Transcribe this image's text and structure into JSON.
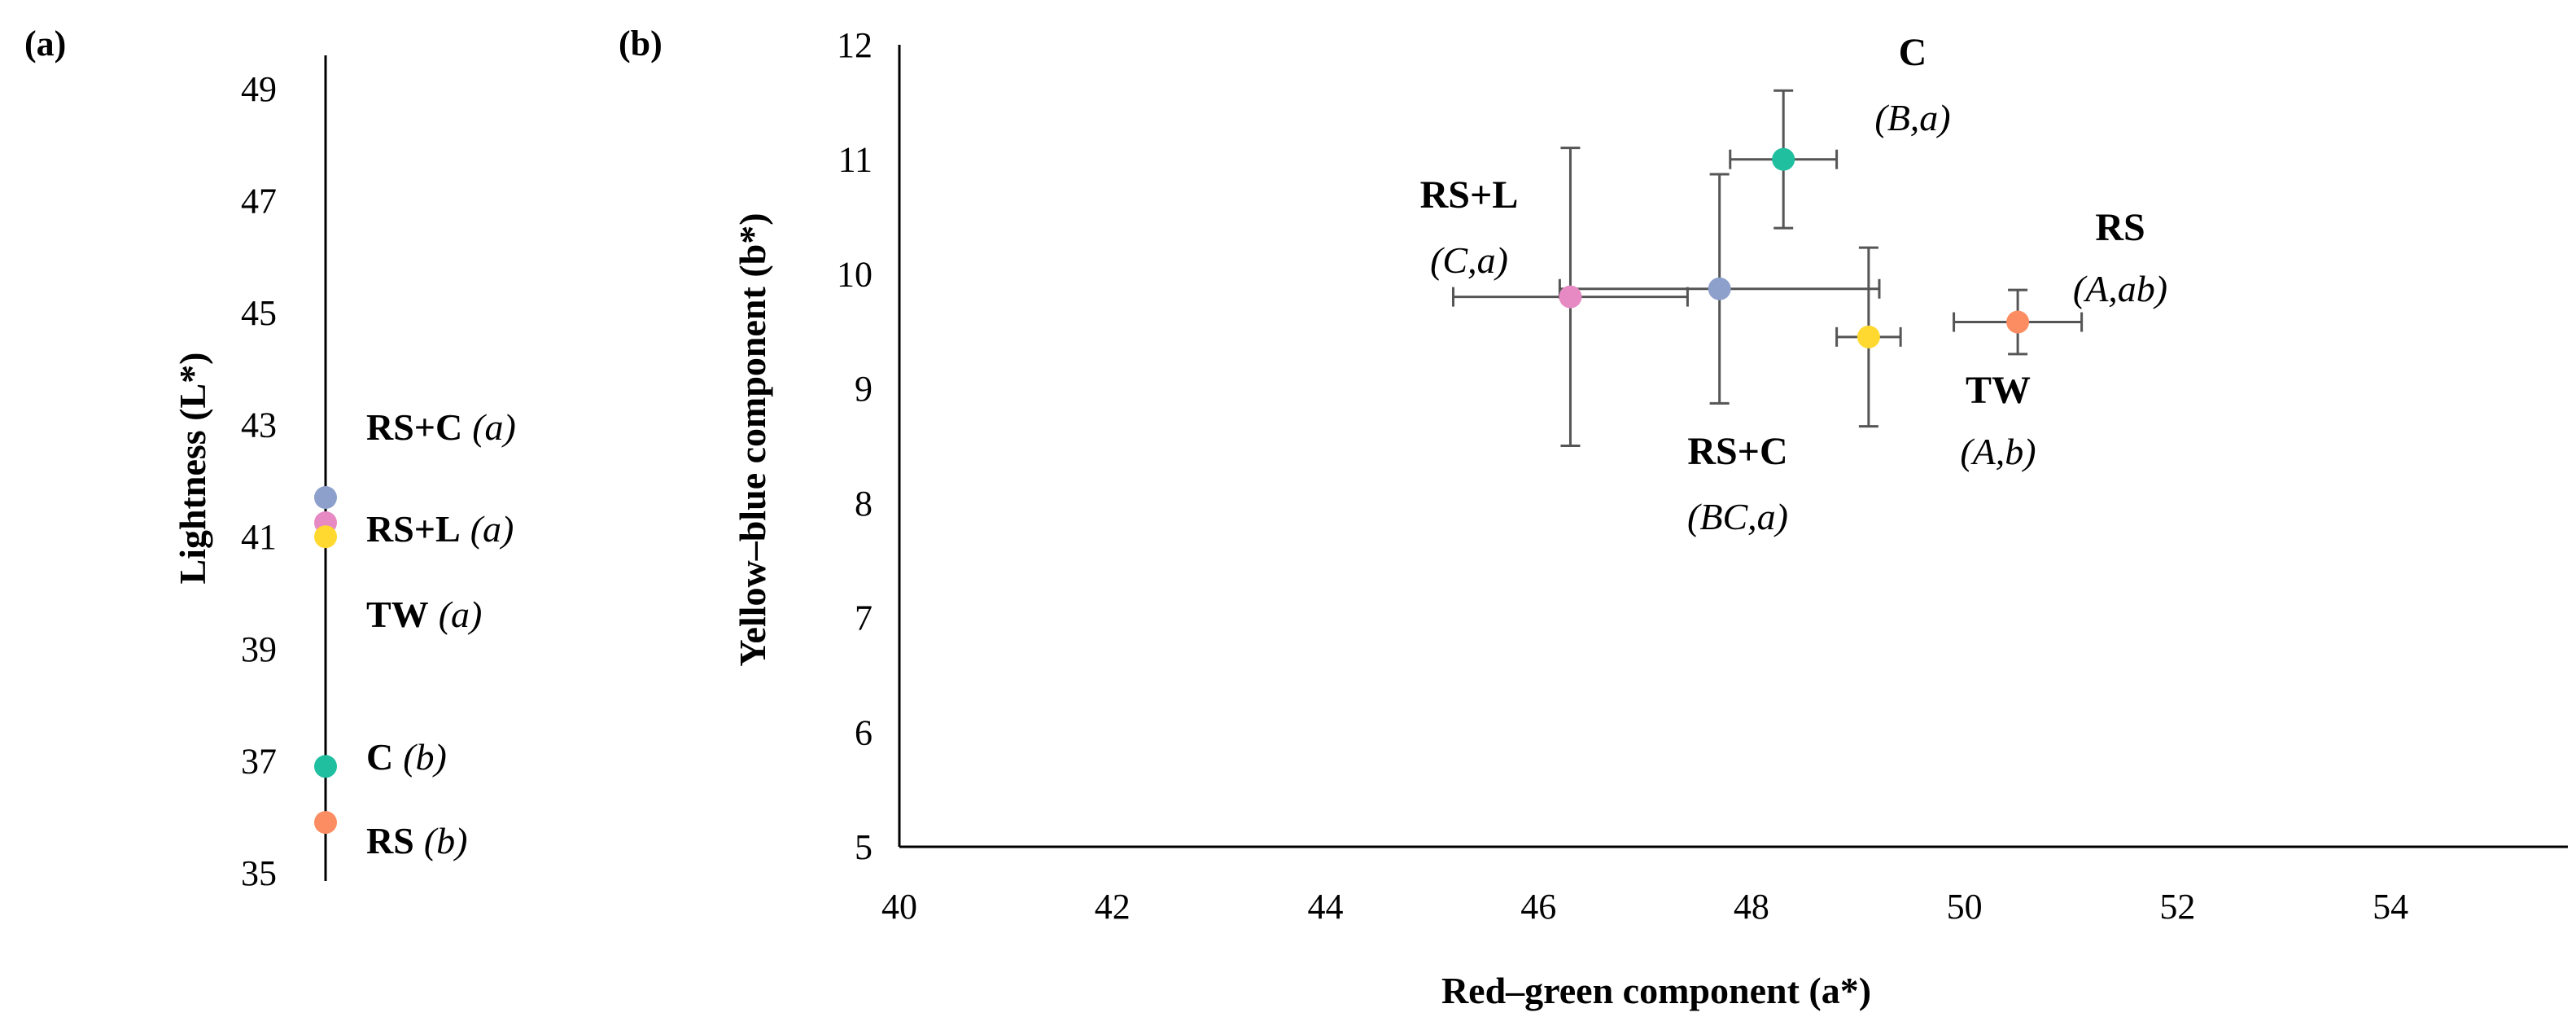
{
  "panels": {
    "a_label": "(a)",
    "b_label": "(b)"
  },
  "chart_data": [
    {
      "panel": "(a)",
      "type": "scatter",
      "orientation": "vertical-strip",
      "ylabel": "Lightness (L*)",
      "ylim": [
        35,
        50
      ],
      "yticks": [
        "35",
        "37",
        "39",
        "41",
        "43",
        "45",
        "47",
        "49"
      ],
      "points": [
        {
          "name": "RS+C",
          "group": "(a)",
          "value": 41.7,
          "color": "#8DA0CB"
        },
        {
          "name": "RS+L",
          "group": "(a)",
          "value": 41.25,
          "color": "#E78AC3"
        },
        {
          "name": "TW",
          "group": "(a)",
          "value": 41.0,
          "color": "#FFD92F"
        },
        {
          "name": "C",
          "group": "(b)",
          "value": 36.9,
          "color": "#1FBF9F"
        },
        {
          "name": "RS",
          "group": "(b)",
          "value": 35.9,
          "color": "#FC8D62"
        }
      ]
    },
    {
      "panel": "(b)",
      "type": "scatter",
      "xlabel": "Red–green component (a*)",
      "ylabel": "Yellow–blue component (b*)",
      "xlim": [
        40,
        55
      ],
      "ylim": [
        5,
        12
      ],
      "xticks": [
        "40",
        "42",
        "44",
        "46",
        "48",
        "50",
        "52",
        "54"
      ],
      "yticks": [
        "5",
        "6",
        "7",
        "8",
        "9",
        "10",
        "11",
        "12"
      ],
      "points": [
        {
          "name": "C",
          "group": "(B,a)",
          "x": 48.3,
          "y": 11.0,
          "xerr": 0.5,
          "yerr": 0.6,
          "color": "#1FBF9F"
        },
        {
          "name": "RS+L",
          "group": "(C,a)",
          "x": 46.3,
          "y": 9.8,
          "xerr": 1.1,
          "yerr": 1.3,
          "color": "#E78AC3"
        },
        {
          "name": "RS+C",
          "group": "(BC,a)",
          "x": 47.7,
          "y": 9.87,
          "xerr": 1.5,
          "yerr": 1.0,
          "color": "#8DA0CB"
        },
        {
          "name": "TW",
          "group": "(A,b)",
          "x": 49.1,
          "y": 9.45,
          "xerr": 0.3,
          "yerr": 0.78,
          "color": "#FFD92F"
        },
        {
          "name": "RS",
          "group": "(A,ab)",
          "x": 50.5,
          "y": 9.58,
          "xerr": 0.6,
          "yerr": 0.28,
          "color": "#FC8D62"
        }
      ]
    }
  ]
}
